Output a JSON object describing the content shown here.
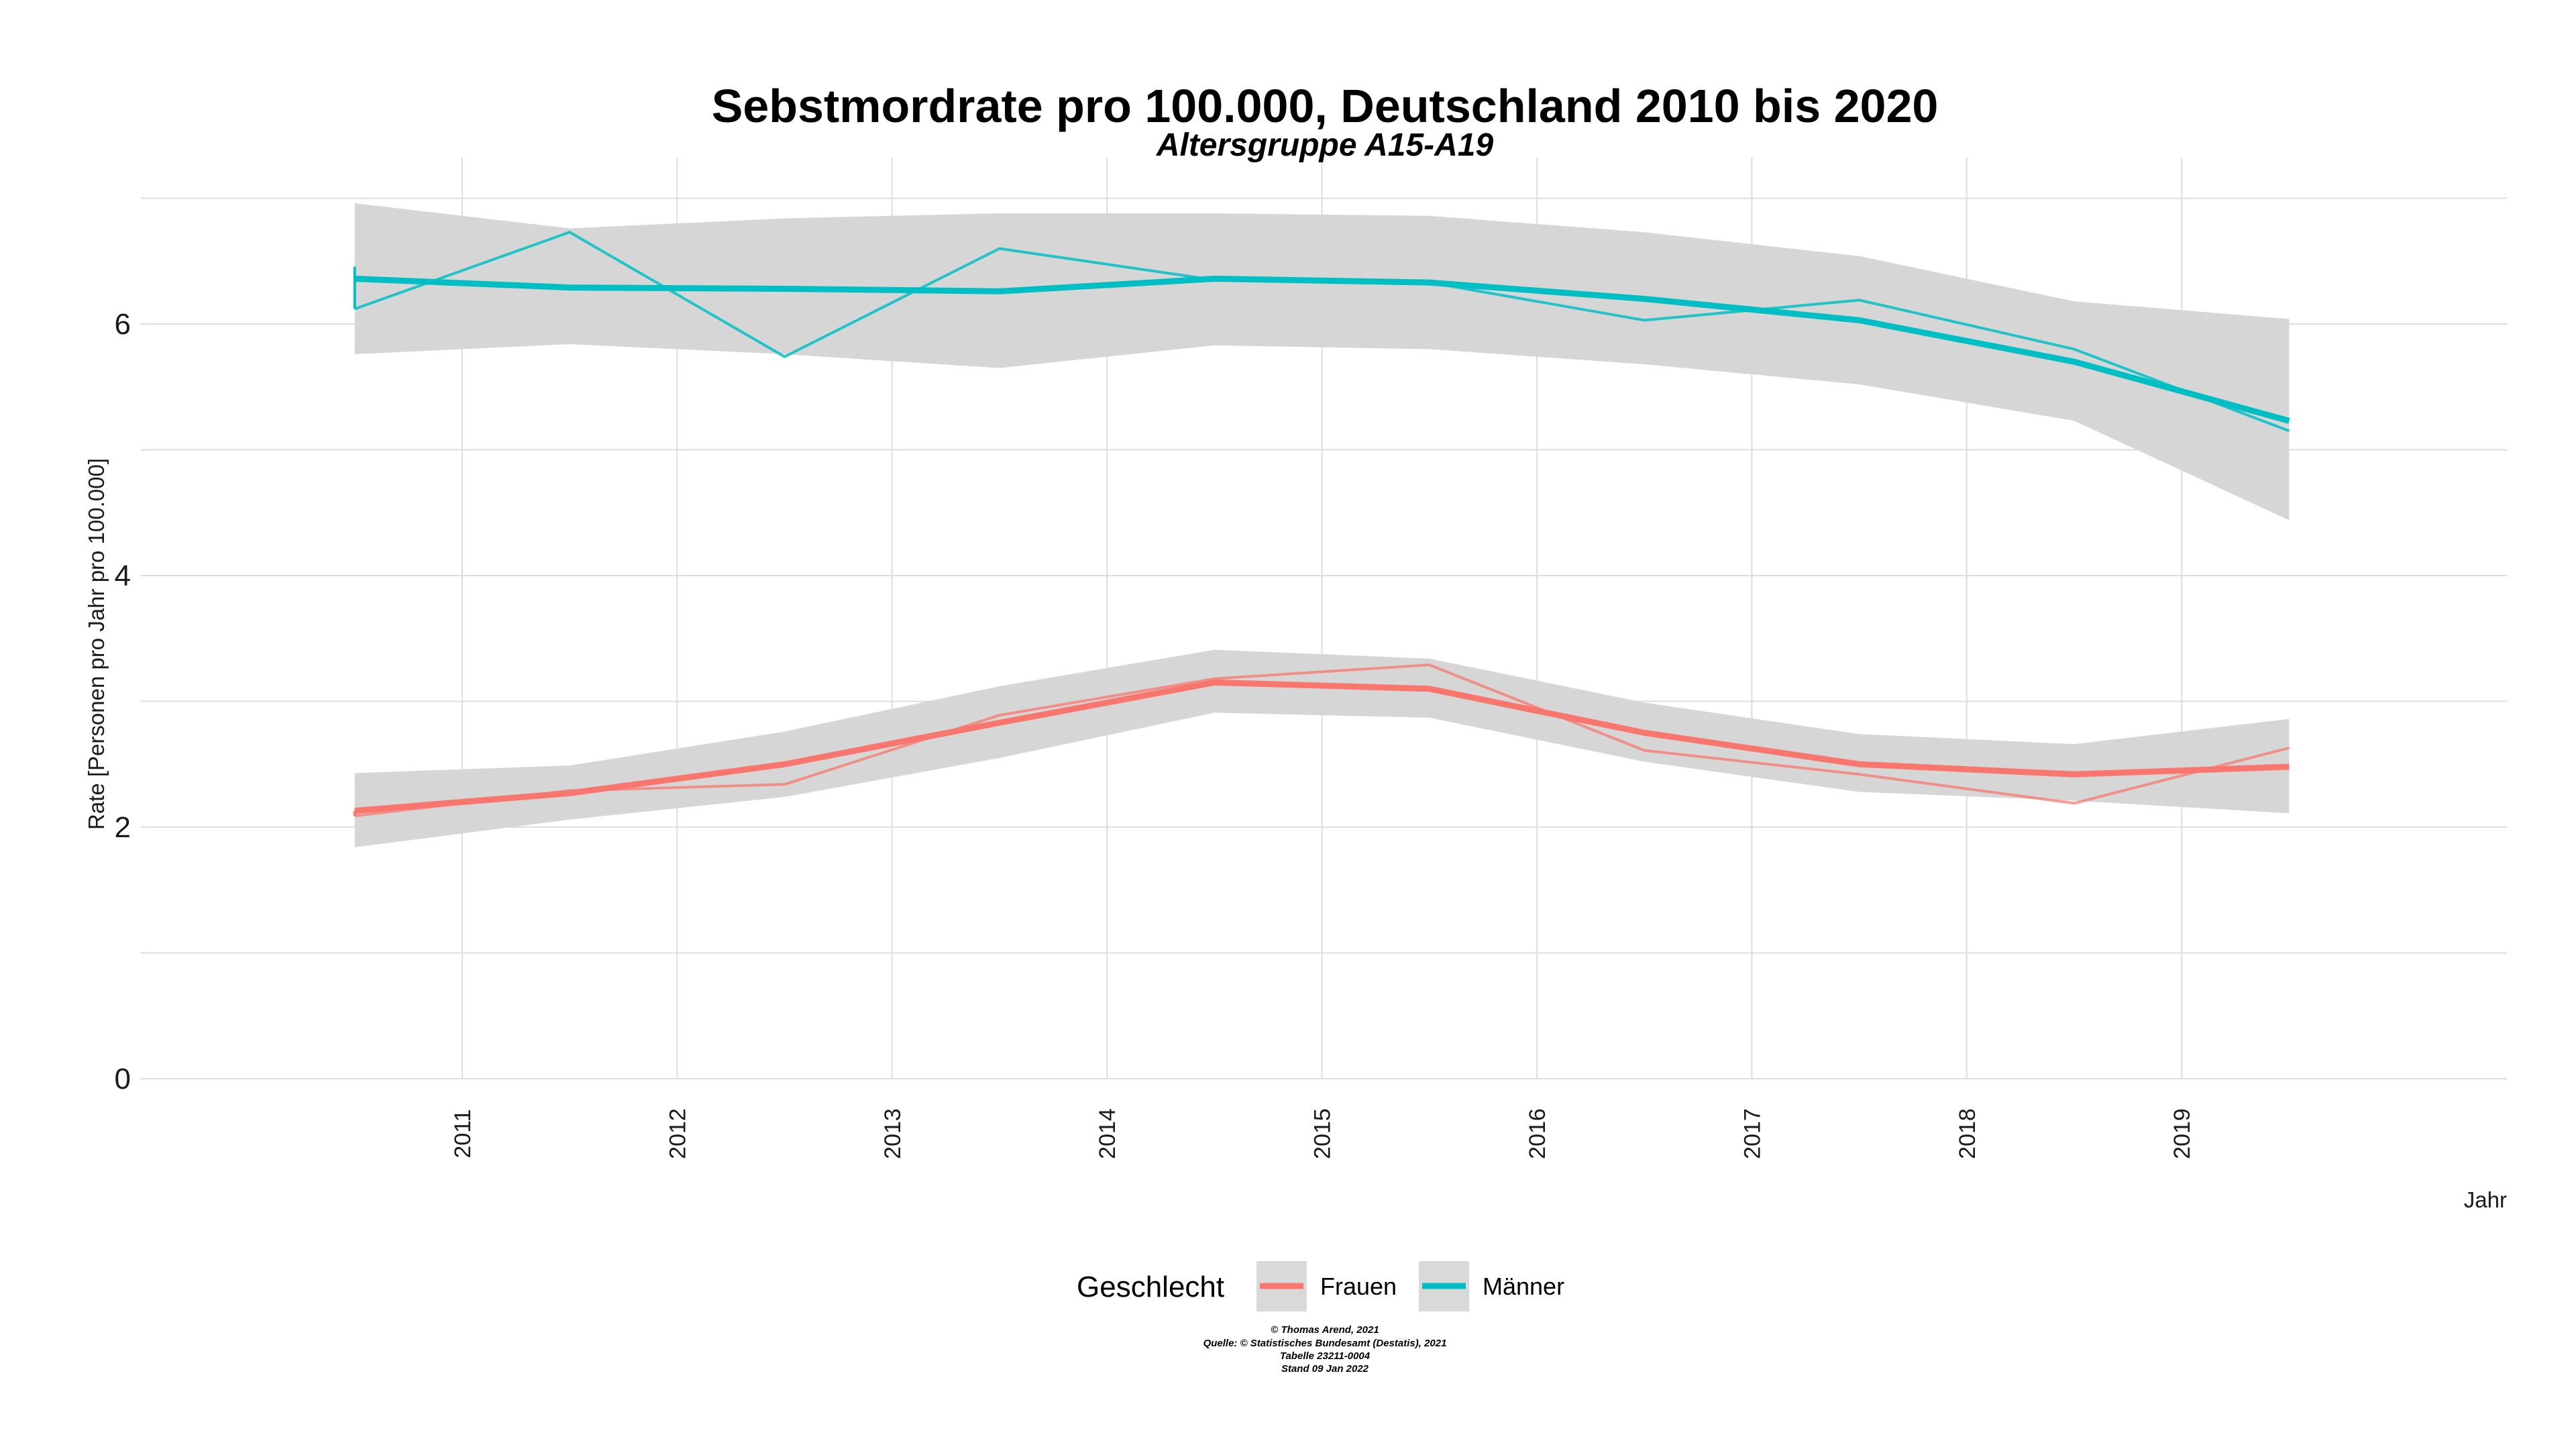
{
  "chart_data": {
    "type": "line",
    "title": "Sebstmordrate pro 100.000, Deutschland  2010 bis 2020",
    "subtitle": "Altersgruppe A15-A19",
    "xlabel": "Jahr",
    "ylabel": "Rate [Personen pro Jahr pro 100.000]",
    "x_ticks": [
      "2011",
      "2012",
      "2013",
      "2014",
      "2015",
      "2016",
      "2017",
      "2018",
      "2019"
    ],
    "y_ticks": [
      "0",
      "2",
      "4",
      "6"
    ],
    "xlim": [
      2010.0,
      2020.5
    ],
    "ylim": [
      0,
      7
    ],
    "grid": true,
    "legend_title": "Geschlecht",
    "legend_position": "bottom",
    "series": [
      {
        "name": "Frauen",
        "color": "#f8766d",
        "x": [
          2010.5,
          2011.5,
          2012.5,
          2013.5,
          2014.5,
          2015.5,
          2016.5,
          2017.5,
          2018.5,
          2019.5
        ],
        "values": [
          2.09,
          2.29,
          2.34,
          2.89,
          3.18,
          3.29,
          2.61,
          2.42,
          2.19,
          2.63
        ],
        "smooth": [
          2.13,
          2.27,
          2.5,
          2.83,
          3.15,
          3.1,
          2.75,
          2.5,
          2.42,
          2.48
        ],
        "ci_lower": [
          1.84,
          2.06,
          2.24,
          2.55,
          2.91,
          2.87,
          2.52,
          2.28,
          2.21,
          2.11
        ],
        "ci_upper": [
          2.43,
          2.49,
          2.76,
          3.12,
          3.41,
          3.34,
          2.99,
          2.74,
          2.66,
          2.86
        ]
      },
      {
        "name": "Männer",
        "color": "#00bfc4",
        "x": [
          2010.5,
          2011.5,
          2012.5,
          2013.5,
          2014.5,
          2015.5,
          2016.5,
          2017.5,
          2018.5,
          2019.5
        ],
        "values": [
          6.12,
          6.73,
          5.74,
          6.6,
          6.35,
          6.33,
          6.03,
          6.19,
          5.8,
          5.15
        ],
        "smooth": [
          6.36,
          6.29,
          6.28,
          6.26,
          6.36,
          6.33,
          6.2,
          6.03,
          5.7,
          5.23
        ],
        "ci_lower": [
          5.76,
          5.84,
          5.76,
          5.65,
          5.83,
          5.8,
          5.68,
          5.52,
          5.23,
          4.44
        ],
        "ci_upper": [
          6.96,
          6.76,
          6.84,
          6.88,
          6.88,
          6.86,
          6.73,
          6.54,
          6.18,
          6.04
        ]
      }
    ]
  },
  "caption": {
    "line1": "© Thomas Arend, 2021",
    "line2": "Quelle: © Statistisches Bundesamt (Destatis), 2021",
    "line3": "Tabelle 23211-0004",
    "line4": "Stand 09 Jan 2022"
  }
}
